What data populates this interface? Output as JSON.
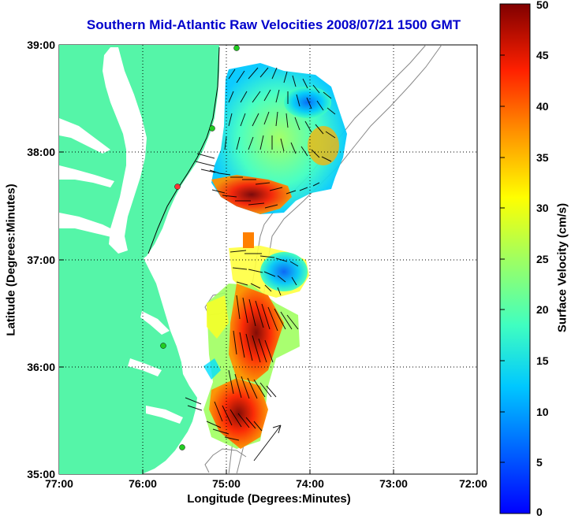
{
  "title": "Southern Mid-Atlantic Raw Velocities 2008/07/21 1500 GMT",
  "x_axis": {
    "label": "Longitude (Degrees:Minutes)",
    "ticks": [
      "77:00",
      "76:00",
      "75:00",
      "74:00",
      "73:00",
      "72:00"
    ]
  },
  "y_axis": {
    "label": "Latitude (Degrees:Minutes)",
    "ticks": [
      "39:00",
      "38:00",
      "37:00",
      "36:00",
      "35:00"
    ]
  },
  "colorbar": {
    "label": "Surface Velocity (cm/s)",
    "ticks": [
      "50",
      "45",
      "40",
      "35",
      "30",
      "25",
      "20",
      "15",
      "10",
      "5",
      "0"
    ],
    "colormap": "jet",
    "range": [
      0,
      50
    ]
  },
  "colors": {
    "land": "#55f5a8",
    "title": "#0000cc",
    "grid": "#000000",
    "station_active": "#22cc22",
    "station_inactive": "#ff3333"
  },
  "map": {
    "lon_range": [
      -77,
      -72
    ],
    "lat_range": [
      35,
      39
    ],
    "grid": "dotted",
    "stations": [
      {
        "status": "active"
      },
      {
        "status": "active"
      },
      {
        "status": "inactive"
      },
      {
        "status": "active"
      },
      {
        "status": "active"
      }
    ]
  }
}
